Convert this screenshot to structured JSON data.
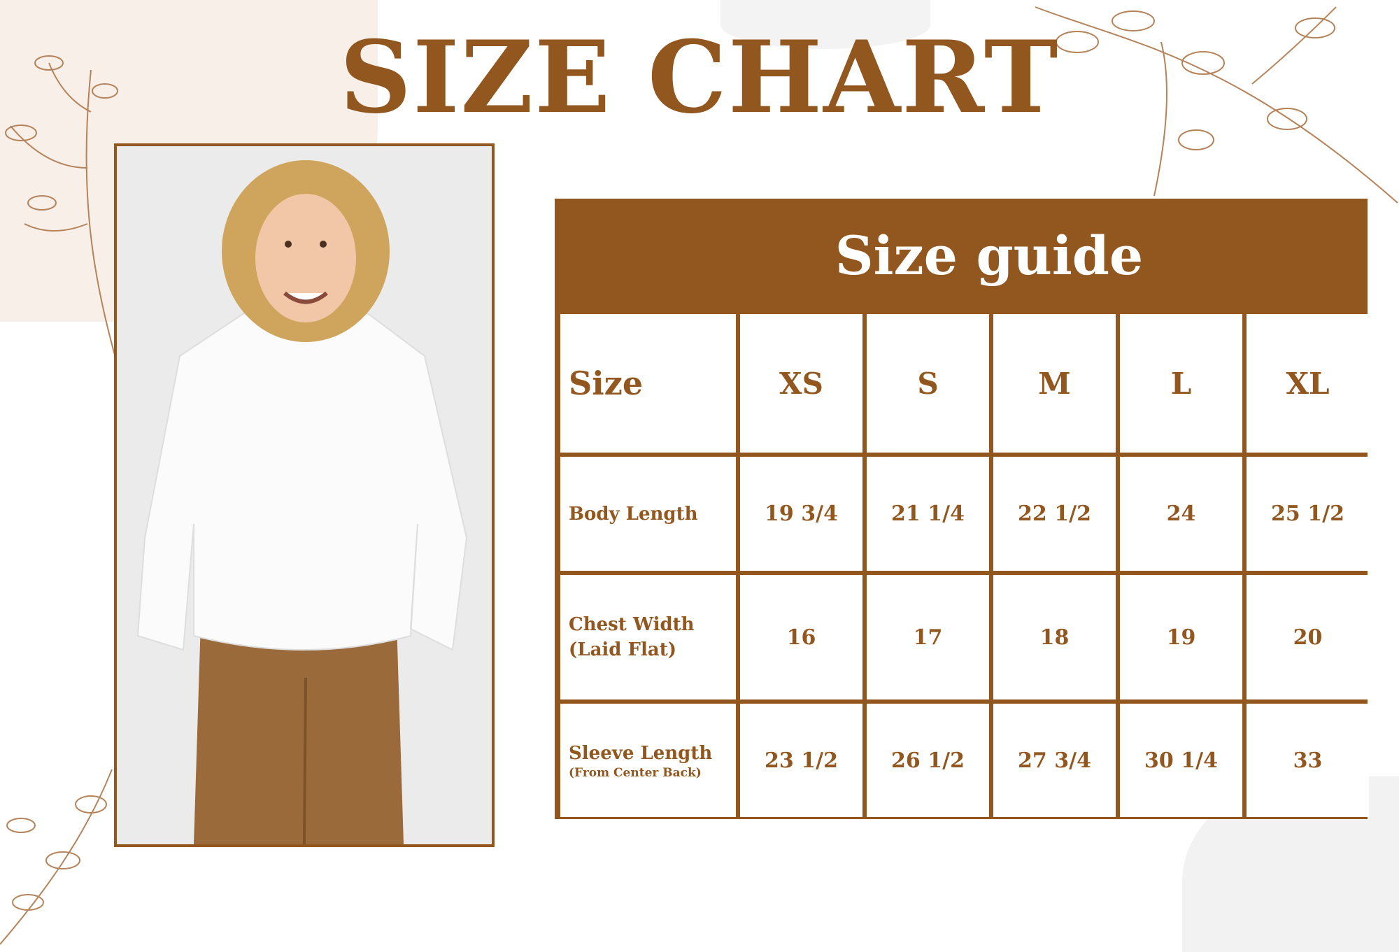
{
  "title": "SIZE CHART",
  "colors": {
    "accent": "#92561f",
    "background": "#ffffff"
  },
  "photo": {
    "subject": "child-in-white-hoodie-and-brown-pants"
  },
  "table": {
    "heading": "Size guide",
    "header": {
      "label": "Size",
      "sizes": [
        "XS",
        "S",
        "M",
        "L",
        "XL"
      ]
    },
    "rows": [
      {
        "label": "Body Length",
        "sublabel": "",
        "values": [
          "19 3/4",
          "21 1/4",
          "22 1/2",
          "24",
          "25 1/2"
        ]
      },
      {
        "label": "Chest Width",
        "sublabel": "(Laid Flat)",
        "values": [
          "16",
          "17",
          "18",
          "19",
          "20"
        ]
      },
      {
        "label": "Sleeve Length",
        "sublabel": "(From Center Back)",
        "values": [
          "23 1/2",
          "26 1/2",
          "27 3/4",
          "30 1/4",
          "33"
        ]
      }
    ]
  }
}
